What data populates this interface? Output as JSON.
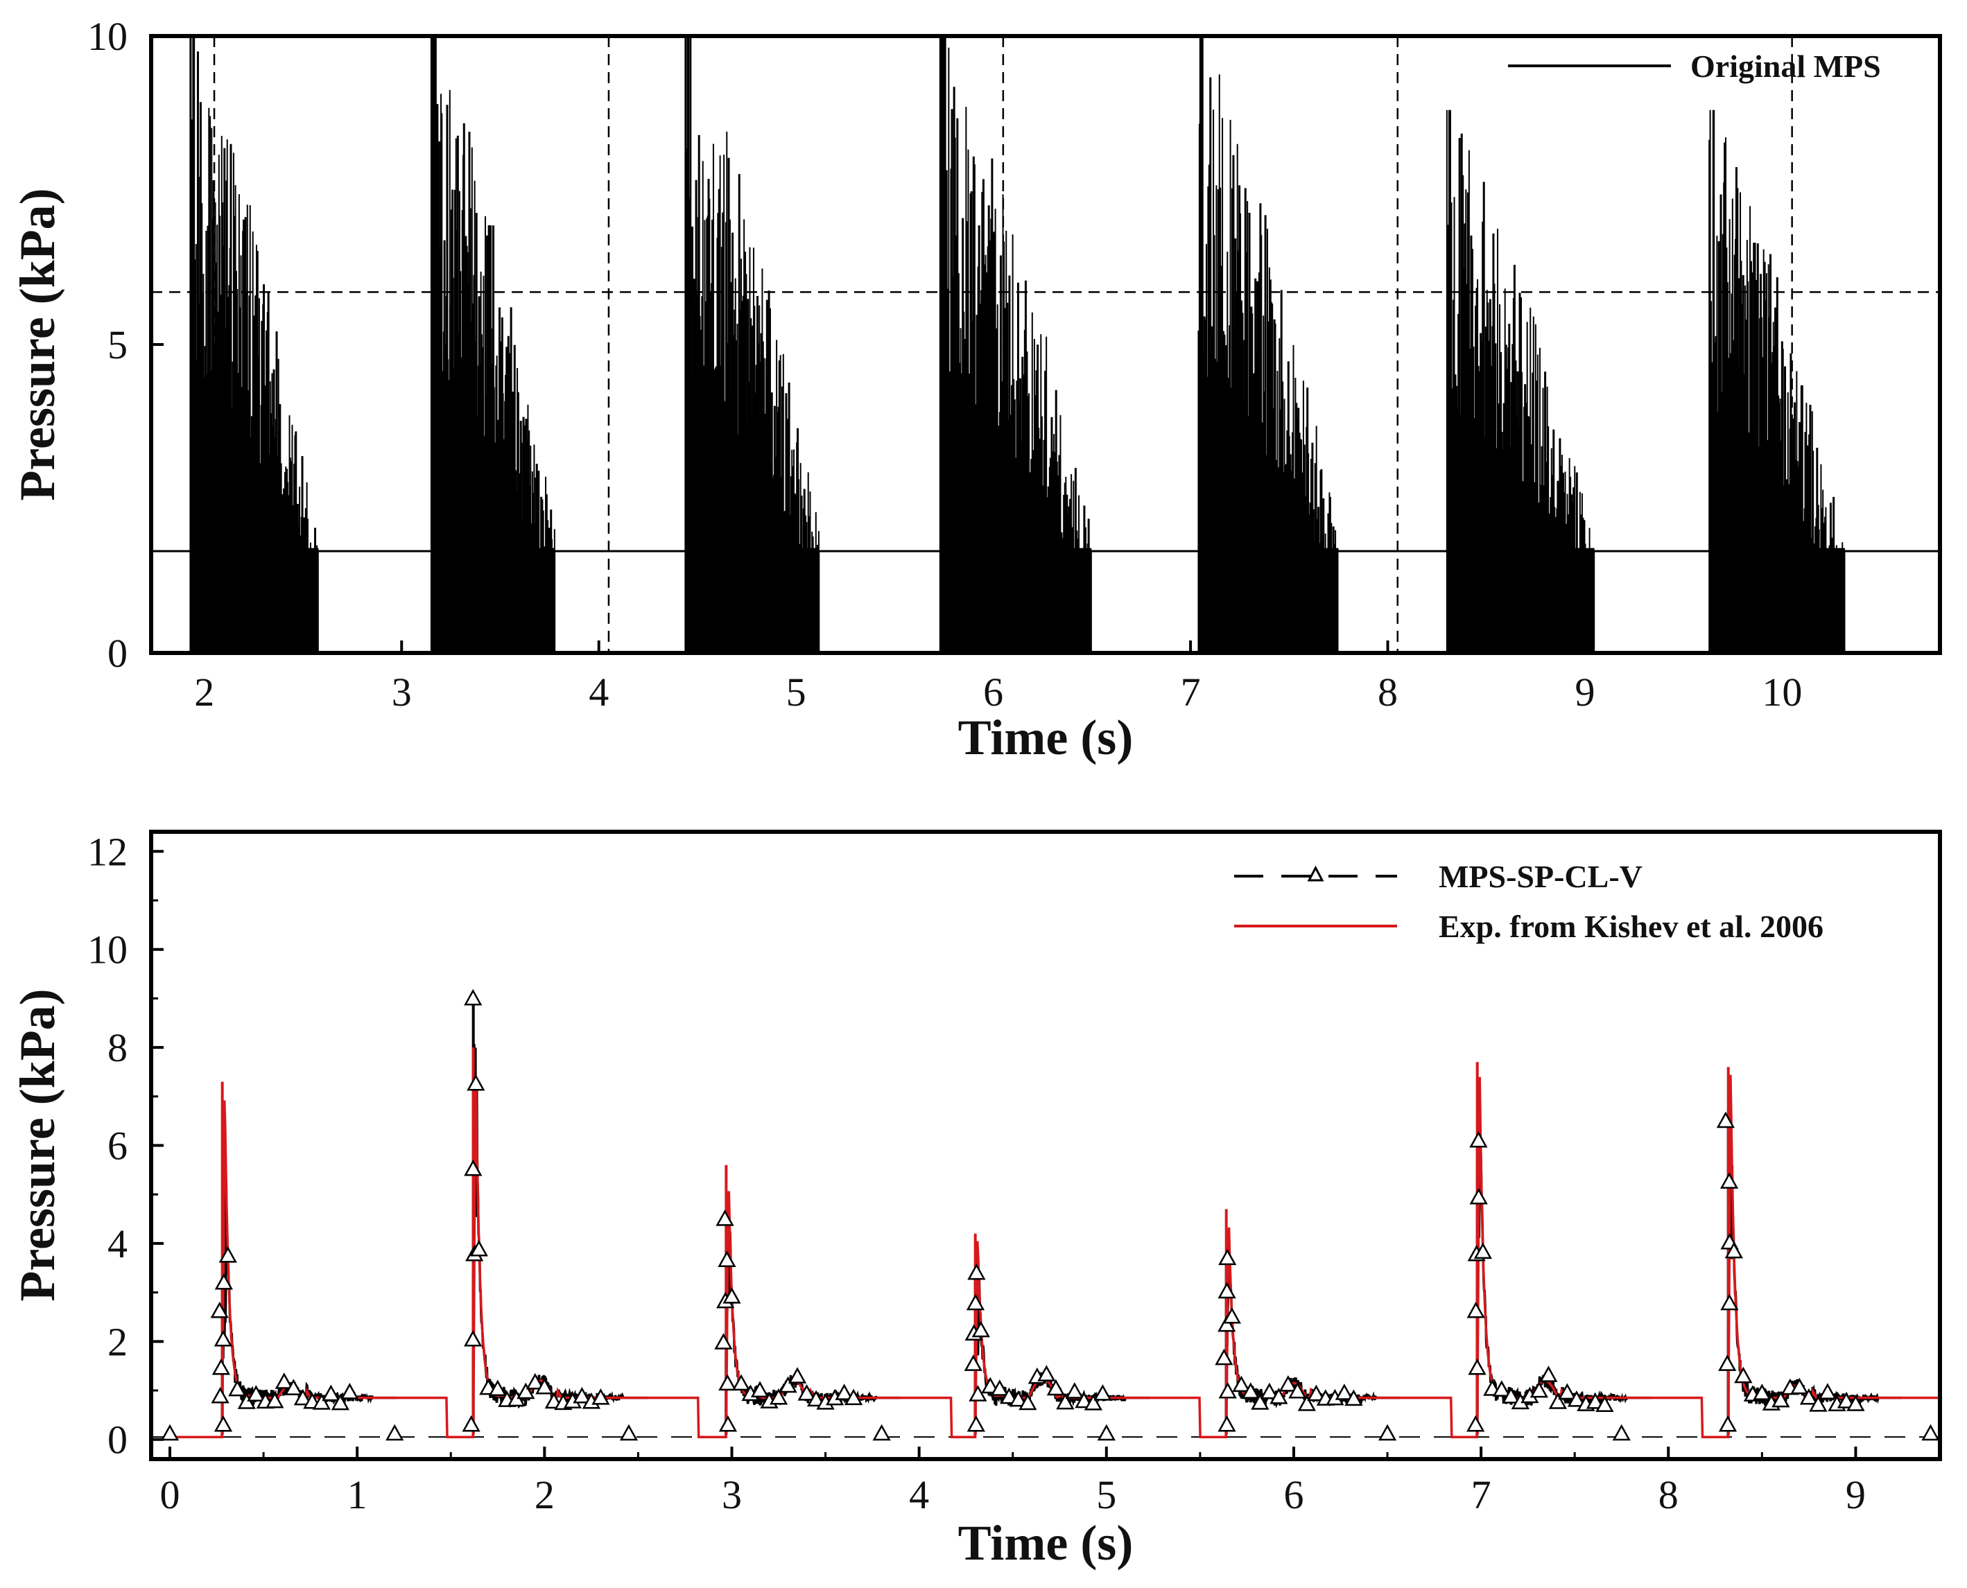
{
  "colors": {
    "mps": "#000000",
    "experiment": "#d7191c",
    "axis": "#000000",
    "background": "#ffffff"
  },
  "chart_data": [
    {
      "type": "line",
      "id": "top",
      "title": "",
      "xlabel": "Time (s)",
      "ylabel": "Pressure (kPa)",
      "xlim": [
        1.73,
        10.8
      ],
      "ylim": [
        0,
        10
      ],
      "xticks": [
        2,
        3,
        4,
        5,
        6,
        7,
        8,
        9,
        10
      ],
      "xtick_labels": [
        "2",
        "3",
        "4",
        "5",
        "6",
        "7",
        "8",
        "9",
        "10"
      ],
      "yticks": [
        0,
        5,
        10
      ],
      "ytick_labels": [
        "0",
        "5",
        "10"
      ],
      "grid": false,
      "legend_position": "top-right",
      "reference_lines": {
        "horizontal_dashed": 5.85,
        "horizontal_solid": 1.65,
        "vertical_dashed": [
          2.05,
          4.05,
          6.05,
          8.05,
          10.05
        ]
      },
      "series": [
        {
          "name": "Original MPS",
          "style": "solid",
          "color": "#000000",
          "bursts": [
            {
              "start": 1.93,
              "end": 2.58,
              "peak": 10.0
            },
            {
              "start": 3.15,
              "end": 3.78,
              "peak": 10.0
            },
            {
              "start": 4.44,
              "end": 5.12,
              "peak": 10.0
            },
            {
              "start": 5.73,
              "end": 6.5,
              "peak": 10.0
            },
            {
              "start": 7.04,
              "end": 7.75,
              "peak": 10.0
            },
            {
              "start": 8.3,
              "end": 9.05,
              "peak": 8.8
            },
            {
              "start": 9.63,
              "end": 10.32,
              "peak": 8.8
            }
          ]
        }
      ]
    },
    {
      "type": "line",
      "id": "bottom",
      "title": "",
      "xlabel": "Time (s)",
      "ylabel": "Pressure (kPa)",
      "xlim": [
        -0.1,
        9.45
      ],
      "ylim": [
        -0.4,
        12.4
      ],
      "xticks": [
        0,
        1,
        2,
        3,
        4,
        5,
        6,
        7,
        8,
        9
      ],
      "xtick_labels": [
        "0",
        "1",
        "2",
        "3",
        "4",
        "5",
        "6",
        "7",
        "8",
        "9"
      ],
      "yticks": [
        0,
        2,
        4,
        6,
        8,
        10,
        12
      ],
      "ytick_labels": [
        "0",
        "2",
        "4",
        "6",
        "8",
        "10",
        "12"
      ],
      "grid": false,
      "legend_position": "top-right",
      "impacts": [
        {
          "t": 0.28,
          "exp_peak": 7.3,
          "num_peak": 3.2,
          "hump": 1.1
        },
        {
          "t": 1.62,
          "exp_peak": 8.0,
          "num_peak": 9.0,
          "hump": 1.2
        },
        {
          "t": 2.97,
          "exp_peak": 5.6,
          "num_peak": 4.5,
          "hump": 1.2
        },
        {
          "t": 4.3,
          "exp_peak": 4.2,
          "num_peak": 3.4,
          "hump": 1.25
        },
        {
          "t": 5.64,
          "exp_peak": 4.7,
          "num_peak": 3.7,
          "hump": 1.15
        },
        {
          "t": 6.98,
          "exp_peak": 7.7,
          "num_peak": 6.1,
          "hump": 1.2
        },
        {
          "t": 8.32,
          "exp_peak": 7.6,
          "num_peak": 6.5,
          "hump": 1.1
        }
      ],
      "series": [
        {
          "name": "MPS-SP-CL-V",
          "style": "dashed with triangle markers",
          "color": "#000000"
        },
        {
          "name": "Exp. from Kishev et al. 2006",
          "style": "solid",
          "color": "#d7191c"
        }
      ]
    }
  ]
}
